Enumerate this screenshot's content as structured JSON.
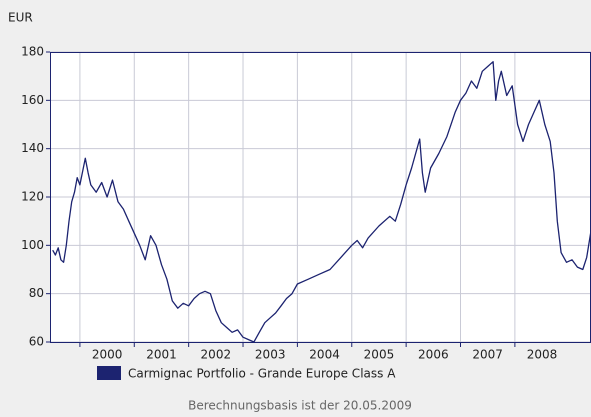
{
  "chart_data": {
    "type": "line",
    "y_label": "EUR",
    "footnote": "Berechnungsbasis ist der 20.05.2009",
    "xlim": [
      1999.45,
      2009.4
    ],
    "xticks": [
      2000,
      2001,
      2002,
      2003,
      2004,
      2005,
      2006,
      2007,
      2008
    ],
    "ylim": [
      60,
      180
    ],
    "yticks": [
      60,
      80,
      100,
      120,
      140,
      160,
      180
    ],
    "grid": true,
    "x": [
      1999.5,
      1999.55,
      1999.6,
      1999.65,
      1999.7,
      1999.75,
      1999.8,
      1999.85,
      1999.9,
      1999.95,
      2000.0,
      2000.1,
      2000.15,
      2000.2,
      2000.3,
      2000.4,
      2000.5,
      2000.6,
      2000.7,
      2000.8,
      2000.9,
      2001.0,
      2001.1,
      2001.2,
      2001.3,
      2001.4,
      2001.5,
      2001.6,
      2001.7,
      2001.8,
      2001.9,
      2002.0,
      2002.1,
      2002.2,
      2002.3,
      2002.4,
      2002.5,
      2002.6,
      2002.7,
      2002.8,
      2002.9,
      2003.0,
      2003.1,
      2003.2,
      2003.3,
      2003.4,
      2003.5,
      2003.6,
      2003.7,
      2003.8,
      2003.9,
      2004.0,
      2004.2,
      2004.4,
      2004.6,
      2004.8,
      2005.0,
      2005.1,
      2005.2,
      2005.3,
      2005.5,
      2005.7,
      2005.8,
      2005.9,
      2006.0,
      2006.1,
      2006.2,
      2006.25,
      2006.3,
      2006.35,
      2006.45,
      2006.6,
      2006.75,
      2006.9,
      2007.0,
      2007.1,
      2007.2,
      2007.3,
      2007.4,
      2007.5,
      2007.6,
      2007.65,
      2007.7,
      2007.75,
      2007.85,
      2007.95,
      2008.05,
      2008.15,
      2008.25,
      2008.35,
      2008.45,
      2008.55,
      2008.65,
      2008.72,
      2008.78,
      2008.85,
      2008.95,
      2009.05,
      2009.15,
      2009.25,
      2009.32,
      2009.4
    ],
    "series": [
      {
        "name": "Carmignac Portfolio - Grande Europe Class A",
        "color": "#1c2370",
        "values": [
          98,
          96,
          99,
          94,
          93,
          100,
          110,
          118,
          122,
          128,
          125,
          136,
          130,
          125,
          122,
          126,
          120,
          127,
          118,
          115,
          110,
          105,
          100,
          94,
          104,
          100,
          92,
          86,
          77,
          74,
          76,
          75,
          78,
          80,
          81,
          80,
          73,
          68,
          66,
          64,
          65,
          62,
          61,
          60,
          64,
          68,
          70,
          72,
          75,
          78,
          80,
          84,
          86,
          88,
          90,
          95,
          100,
          102,
          99,
          103,
          108,
          112,
          110,
          117,
          125,
          132,
          140,
          144,
          130,
          122,
          132,
          138,
          145,
          155,
          160,
          163,
          168,
          165,
          172,
          174,
          176,
          160,
          168,
          172,
          162,
          166,
          150,
          143,
          150,
          155,
          160,
          150,
          143,
          130,
          110,
          97,
          93,
          94,
          91,
          90,
          95,
          106
        ]
      }
    ]
  }
}
